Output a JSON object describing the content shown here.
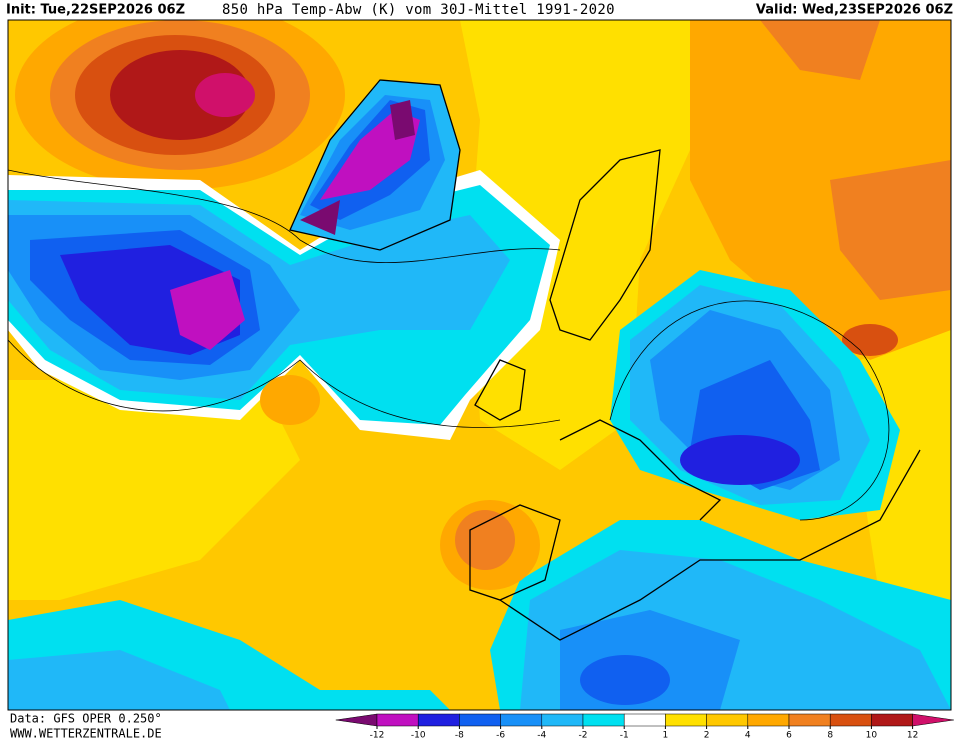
{
  "header": {
    "init": "Init: Tue,22SEP2026 06Z",
    "title": "850 hPa Temp-Abw (K) vom 30J-Mittel 1991-2020",
    "valid": "Valid: Wed,23SEP2026 06Z"
  },
  "footer": {
    "data_source": "Data: GFS OPER 0.250°",
    "website": "WWW.WETTERZENTRALE.DE"
  },
  "legend": {
    "ticks": [
      -12,
      -10,
      -8,
      -6,
      -4,
      -2,
      -1,
      1,
      2,
      4,
      6,
      8,
      10,
      12
    ],
    "colors": [
      "#7a0a70",
      "#c010c0",
      "#2020e0",
      "#1060f0",
      "#1890f8",
      "#20b8f8",
      "#00e0f0",
      "#ffffff",
      "#ffe000",
      "#ffc800",
      "#ffa800",
      "#f08020",
      "#d85010",
      "#b01818",
      "#d0106a"
    ]
  }
}
